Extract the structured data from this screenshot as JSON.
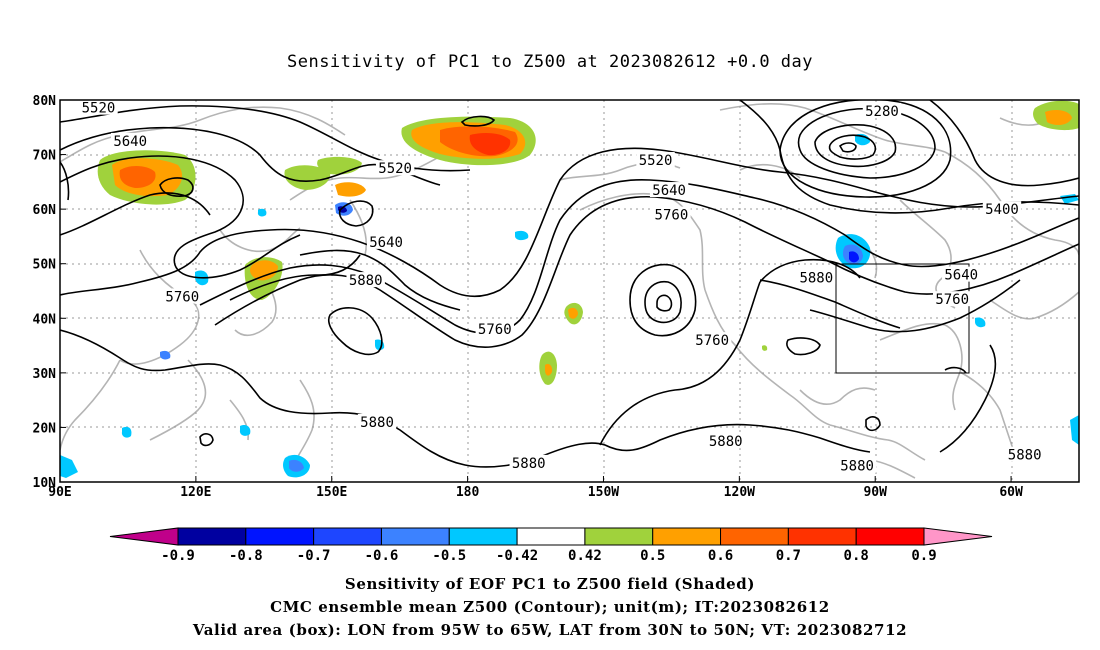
{
  "chart_data": {
    "type": "contour",
    "title": "Sensitivity of PC1 to Z500 at 2023082612 +0.0 day",
    "x_ticks": [
      "90E",
      "120E",
      "150E",
      "180",
      "150W",
      "120W",
      "90W",
      "60W"
    ],
    "x_range_deg": [
      90,
      315
    ],
    "y_ticks": [
      "10N",
      "20N",
      "30N",
      "40N",
      "50N",
      "60N",
      "70N",
      "80N"
    ],
    "y_range_deg": [
      10,
      80
    ],
    "grid": true,
    "shaded_field": "Sensitivity of EOF PC1 to Z500 field",
    "contour_field": "CMC ensemble mean Z500 (m)",
    "colorbar": {
      "levels": [
        "-0.9",
        "-0.8",
        "-0.7",
        "-0.6",
        "-0.5",
        "-0.42",
        "0.42",
        "0.5",
        "0.6",
        "0.7",
        "0.8",
        "0.9"
      ],
      "colors": [
        "#c0008a",
        "#0000a0",
        "#0014ff",
        "#1e46ff",
        "#3c82ff",
        "#00c8ff",
        "#ffffff",
        "#a0d23c",
        "#ffa000",
        "#ff6400",
        "#ff3200",
        "#ff0000",
        "#ff96c8"
      ]
    },
    "contour_labels": [
      {
        "text": "5520",
        "lon": 98.5,
        "lat": 78.6
      },
      {
        "text": "5640",
        "lon": 105.5,
        "lat": 72.5
      },
      {
        "text": "5520",
        "lon": 164.0,
        "lat": 67.5
      },
      {
        "text": "5640",
        "lon": 162.0,
        "lat": 54.0
      },
      {
        "text": "5760",
        "lon": 117.0,
        "lat": 44.0
      },
      {
        "text": "5880",
        "lon": 157.5,
        "lat": 47.0
      },
      {
        "text": "5760",
        "lon": 186.0,
        "lat": 38.0
      },
      {
        "text": "5520",
        "lon": 221.5,
        "lat": 69.0
      },
      {
        "text": "5640",
        "lon": 224.5,
        "lat": 63.5
      },
      {
        "text": "5760",
        "lon": 225.0,
        "lat": 59.0
      },
      {
        "text": "5280",
        "lon": 271.5,
        "lat": 78.0
      },
      {
        "text": "5400",
        "lon": 298.0,
        "lat": 60.0
      },
      {
        "text": "5640",
        "lon": 289.0,
        "lat": 48.0
      },
      {
        "text": "5760",
        "lon": 287.0,
        "lat": 43.5
      },
      {
        "text": "5880",
        "lon": 257.0,
        "lat": 47.5
      },
      {
        "text": "5760",
        "lon": 234.0,
        "lat": 36.0
      },
      {
        "text": "5880",
        "lon": 160.0,
        "lat": 21.0
      },
      {
        "text": "5880",
        "lon": 193.5,
        "lat": 13.5
      },
      {
        "text": "5880",
        "lon": 237.0,
        "lat": 17.5
      },
      {
        "text": "5880",
        "lon": 266.0,
        "lat": 13.0
      },
      {
        "text": "5880",
        "lon": 303.0,
        "lat": 15.0
      }
    ],
    "valid_area_box": {
      "lon": [
        265,
        295
      ],
      "lat": [
        30,
        50
      ]
    },
    "captions": [
      "Sensitivity of EOF PC1 to Z500 field (Shaded)",
      "CMC ensemble mean Z500 (Contour); unit(m); IT:2023082612",
      "Valid area (box): LON from 95W to 65W, LAT from 30N to 50N; VT: 2023082712"
    ]
  }
}
